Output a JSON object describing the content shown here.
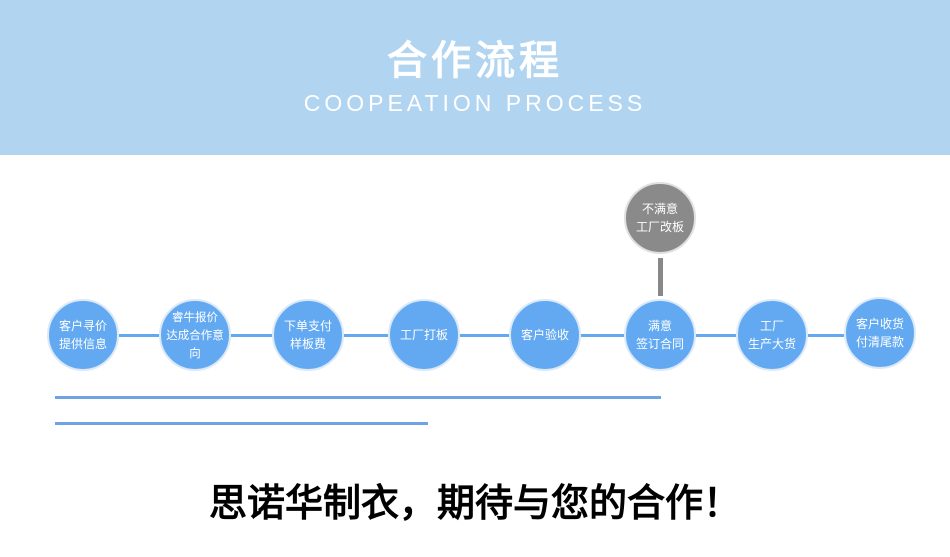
{
  "header": {
    "title": "合作流程",
    "subtitle": "COOPEATION PROCESS"
  },
  "steps": [
    {
      "line1": "客户寻价",
      "line2": "提供信息"
    },
    {
      "line1": "睿牛报价",
      "line2": "达成合作意向"
    },
    {
      "line1": "下单支付",
      "line2": "样板费"
    },
    {
      "line1": "工厂打板",
      "line2": ""
    },
    {
      "line1": "客户验收",
      "line2": ""
    },
    {
      "line1": "满意",
      "line2": "签订合同"
    },
    {
      "line1": "工厂",
      "line2": "生产大货"
    },
    {
      "line1": "客户收货",
      "line2": "付清尾款"
    }
  ],
  "branch": {
    "line1": "不满意",
    "line2": "工厂改板"
  },
  "slogan": "思诺华制衣，期待与您的合作！",
  "colors": {
    "header": "#b1d4f1",
    "step": "#63a9f2",
    "branch": "#8a8a8a"
  }
}
